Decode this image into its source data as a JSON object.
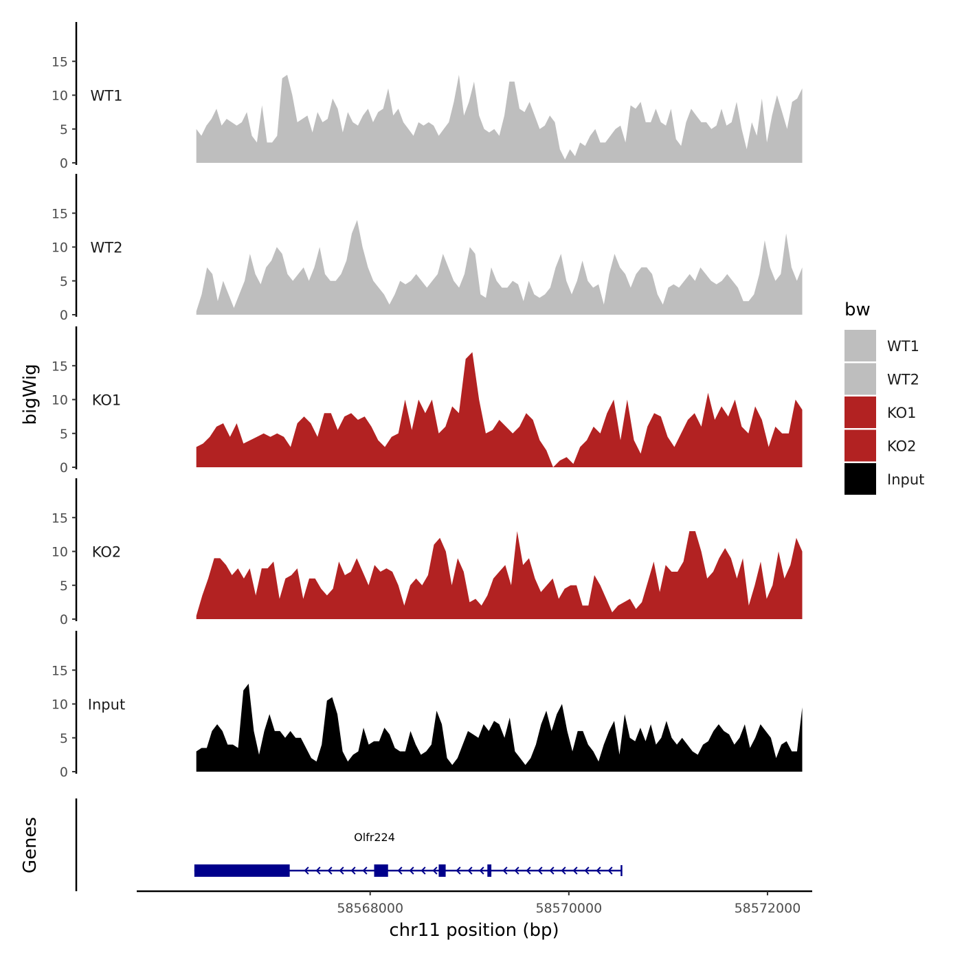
{
  "chart_data": {
    "type": "area",
    "title": "",
    "xlabel": "chr11 position (bp)",
    "ylabel_tracks": "bigWig",
    "ylabel_genes": "Genes",
    "xlim": [
      58565650,
      58572450
    ],
    "ylim": [
      0,
      20
    ],
    "x_ticks": [
      58568000,
      58570000,
      58572000
    ],
    "x_tick_labels": [
      "58568000",
      "58570000",
      "58572000"
    ],
    "y_ticks": [
      0,
      5,
      10,
      15
    ],
    "y_tick_labels": [
      "0",
      "5",
      "10",
      "15"
    ],
    "track_x_range": [
      58566250,
      58572350
    ],
    "legend": {
      "title": "bw",
      "items": [
        {
          "label": "WT1",
          "color": "#bebebe"
        },
        {
          "label": "WT2",
          "color": "#bebebe"
        },
        {
          "label": "KO1",
          "color": "#b22222"
        },
        {
          "label": "KO2",
          "color": "#b22222"
        },
        {
          "label": "Input",
          "color": "#000000"
        }
      ]
    },
    "series": [
      {
        "name": "WT1",
        "color": "#bebebe",
        "values": [
          5,
          4,
          5.5,
          6.5,
          8,
          5.5,
          6.5,
          6,
          5.5,
          6,
          7.5,
          4,
          3,
          8.5,
          3,
          3,
          4,
          12.5,
          13,
          10,
          6,
          6.5,
          7,
          4.5,
          7.5,
          6,
          6.5,
          9.5,
          8,
          4.5,
          7.5,
          6,
          5.5,
          7,
          8,
          6,
          7.5,
          8,
          11,
          7,
          8,
          6,
          5,
          4,
          6,
          5.5,
          6,
          5.5,
          4,
          5,
          6,
          9,
          13,
          7,
          9,
          12,
          7,
          5,
          4.5,
          5,
          4,
          7,
          12,
          12,
          8,
          7.5,
          9,
          7,
          5,
          5.5,
          7,
          6,
          2,
          0.5,
          2,
          1,
          3,
          2.5,
          4,
          5,
          3,
          3,
          4,
          5,
          5.5,
          3,
          8.5,
          8,
          9,
          6,
          6,
          8,
          6,
          5.5,
          8,
          3.5,
          2.5,
          6,
          8,
          7,
          6,
          6,
          5,
          5.5,
          8,
          5.5,
          6,
          9,
          5,
          2,
          6,
          4,
          9.5,
          3,
          7,
          10,
          7.5,
          5,
          9,
          9.5,
          11
        ]
      },
      {
        "name": "WT2",
        "color": "#bebebe",
        "values": [
          0.5,
          3,
          7,
          6,
          2,
          5,
          3,
          1,
          3,
          5,
          9,
          6,
          4.5,
          7,
          8,
          10,
          9,
          6,
          5,
          6,
          7,
          5,
          7,
          10,
          6,
          5,
          5,
          6,
          8,
          12,
          14,
          10,
          7,
          5,
          4,
          3,
          1.5,
          3,
          5,
          4.5,
          5,
          6,
          5,
          4,
          5,
          6,
          9,
          7,
          5,
          4,
          6,
          10,
          9,
          3,
          2.5,
          7,
          5,
          4,
          4,
          5,
          4.5,
          2,
          5,
          3,
          2.5,
          3,
          4,
          7,
          9,
          5,
          3,
          5,
          8,
          5,
          4,
          4.5,
          1.5,
          6,
          9,
          7,
          6,
          4,
          6,
          7,
          7,
          6,
          3,
          1.5,
          4,
          4.5,
          4,
          5,
          6,
          5,
          7,
          6,
          5,
          4.5,
          5,
          6,
          5,
          4,
          2,
          2,
          3,
          6,
          11,
          7,
          5,
          6,
          12,
          7,
          5,
          7
        ]
      },
      {
        "name": "KO1",
        "color": "#b22222",
        "values": [
          3,
          3.5,
          4.5,
          6,
          6.5,
          4.5,
          6.5,
          3.5,
          4,
          4.5,
          5,
          4.5,
          5,
          4.5,
          3,
          6.5,
          7.5,
          6.5,
          4.5,
          8,
          8,
          5.5,
          7.5,
          8,
          7,
          7.5,
          6,
          4,
          3,
          4.5,
          5,
          10,
          5.5,
          10,
          8,
          10,
          5,
          6,
          9,
          8,
          16,
          17,
          10,
          5,
          5.5,
          7,
          6,
          5,
          6,
          8,
          7,
          4,
          2.5,
          0,
          1,
          1.5,
          0.5,
          3,
          4,
          6,
          5,
          8,
          10,
          4,
          10,
          4,
          2,
          6,
          8,
          7.5,
          4.5,
          3,
          5,
          7,
          8,
          6,
          11,
          7,
          9,
          7.5,
          10,
          6,
          5,
          9,
          7,
          3,
          6,
          5,
          5,
          10,
          8.5
        ]
      },
      {
        "name": "KO2",
        "color": "#b22222",
        "values": [
          0.5,
          3.5,
          6,
          9,
          9,
          8,
          6.5,
          7.5,
          6,
          7.5,
          3.5,
          7.5,
          7.5,
          8.5,
          3,
          6,
          6.5,
          7.5,
          3,
          6,
          6,
          4.5,
          3.5,
          4.5,
          8.5,
          6.5,
          7,
          9,
          7,
          5,
          8,
          7,
          7.5,
          7,
          5,
          2,
          5,
          6,
          5,
          6.5,
          11,
          12,
          10,
          5,
          9,
          7,
          2.5,
          3,
          2,
          3.5,
          6,
          7,
          8,
          5,
          13,
          8,
          9,
          6,
          4,
          5,
          6,
          3,
          4.5,
          5,
          5,
          2,
          2,
          6.5,
          5,
          3,
          1,
          2,
          2.5,
          3,
          1.5,
          2.5,
          5.5,
          8.5,
          4,
          8,
          7,
          7,
          8.5,
          13,
          13,
          10,
          6,
          7,
          9,
          10.5,
          9,
          6,
          9,
          2,
          5,
          8.5,
          3,
          5,
          10,
          6,
          8,
          12,
          10
        ]
      },
      {
        "name": "Input",
        "color": "#000000",
        "values": [
          3,
          3.5,
          3.5,
          6,
          7,
          6,
          4,
          4,
          3.5,
          12,
          13,
          6,
          2.5,
          6,
          8.5,
          6,
          6,
          5,
          6,
          5,
          5,
          3.5,
          2,
          1.5,
          4,
          10.5,
          11,
          8.5,
          3,
          1.5,
          2.5,
          3,
          6.5,
          4,
          4.5,
          4.5,
          6.5,
          5.5,
          3.5,
          3,
          3,
          6,
          4,
          2.5,
          3,
          4,
          9,
          7,
          2,
          1,
          2,
          4,
          6,
          5.5,
          5,
          7,
          6,
          7.5,
          7,
          5,
          8,
          3,
          2,
          1,
          2,
          4,
          7,
          9,
          6,
          8.5,
          10,
          6,
          3,
          6,
          6,
          4,
          3,
          1.5,
          4,
          6,
          7.5,
          2.5,
          8.5,
          5,
          4.5,
          6.5,
          4.5,
          7,
          4,
          5,
          7.5,
          5,
          4,
          5,
          4,
          3,
          2.5,
          4,
          4.5,
          6,
          7,
          6,
          5.5,
          4,
          5,
          7,
          3.5,
          5,
          7,
          6,
          5,
          2,
          4,
          4.5,
          3,
          3,
          9.5
        ]
      }
    ],
    "gene": {
      "name": "Olfr224",
      "strand": "-",
      "color": "#00008b",
      "start": 58566230,
      "end": 58570530,
      "exons": [
        {
          "start": 58566230,
          "end": 58567190
        },
        {
          "start": 58568040,
          "end": 58568180
        },
        {
          "start": 58568690,
          "end": 58568760
        },
        {
          "start": 58569180,
          "end": 58569220
        }
      ]
    }
  }
}
